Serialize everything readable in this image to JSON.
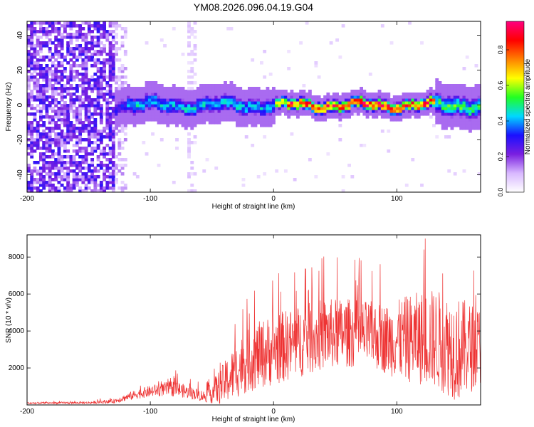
{
  "title": "YM08.2026.096.04.19.G04",
  "chart_data": [
    {
      "type": "heatmap",
      "xlabel": "Height of straight line (km)",
      "ylabel": "Frequency (Hz)",
      "xlim": [
        -200,
        168
      ],
      "ylim": [
        -50,
        48
      ],
      "xticks": [
        -200,
        -100,
        0,
        100
      ],
      "yticks": [
        -40,
        -20,
        0,
        20,
        40
      ],
      "colorbar": {
        "label": "Normalized spectral amplitude",
        "range": [
          0,
          0.96
        ],
        "ticks": [
          "0.0",
          "0.2",
          "0.4",
          "0.6",
          "0.8"
        ],
        "colors": [
          "#ffffff",
          "#d8b8ff",
          "#7a1fe0",
          "#1a10ff",
          "#00d8ff",
          "#22ff22",
          "#ffff00",
          "#ff8000",
          "#ff0000",
          "#ff0080"
        ]
      },
      "features": {
        "noise_region_x": [
          -200,
          -120
        ],
        "noise_interference_band_x": [
          -70,
          -62
        ],
        "signal_ridge_start_x": -130,
        "signal_ridge_center_freq": 0,
        "peak_region_x": [
          10,
          130
        ]
      }
    },
    {
      "type": "line",
      "xlabel": "Height of straight line (km)",
      "ylabel": "SNR (10 * v/v)",
      "xlim": [
        -200,
        168
      ],
      "ylim": [
        0,
        9200
      ],
      "xticks": [
        -200,
        -100,
        0,
        100
      ],
      "yticks": [
        2000,
        4000,
        6000,
        8000
      ],
      "color": "#ee3333",
      "envelope": {
        "x": [
          -200,
          -150,
          -130,
          -110,
          -95,
          -80,
          -70,
          -55,
          -45,
          -35,
          -25,
          -15,
          0,
          20,
          40,
          60,
          80,
          95,
          110,
          130,
          150,
          168
        ],
        "mean": [
          100,
          120,
          200,
          600,
          800,
          900,
          700,
          450,
          900,
          1500,
          2200,
          2600,
          3000,
          3400,
          3800,
          3900,
          3800,
          3500,
          3600,
          3600,
          3000,
          3200
        ],
        "spread": [
          60,
          80,
          150,
          350,
          450,
          600,
          450,
          400,
          1200,
          1800,
          2200,
          2400,
          2600,
          2600,
          2600,
          2500,
          2400,
          2600,
          3200,
          3600,
          3800,
          2800
        ]
      },
      "max_spike": 9000
    }
  ]
}
